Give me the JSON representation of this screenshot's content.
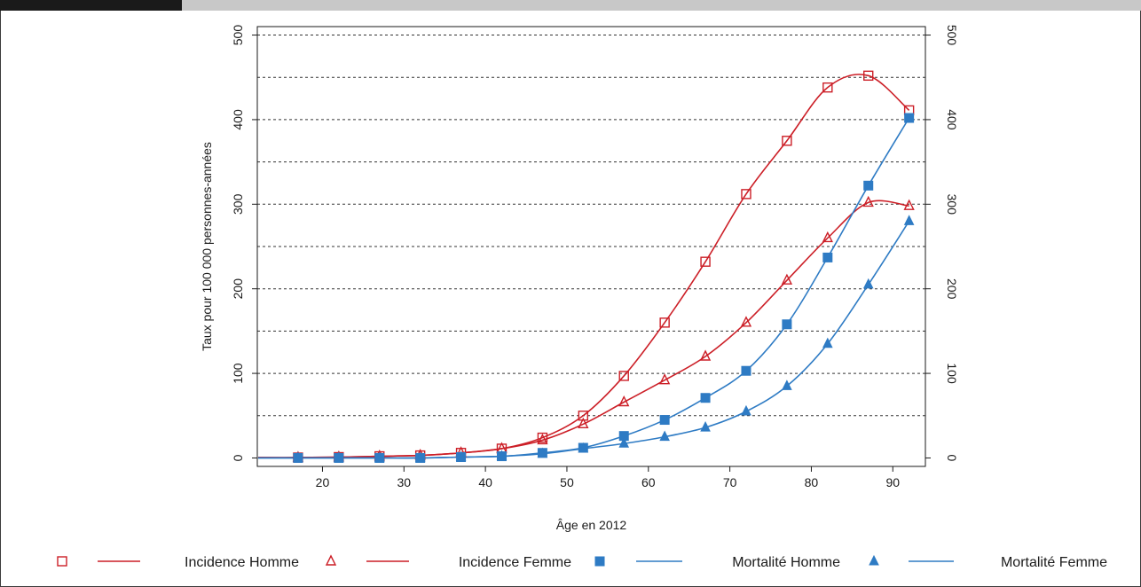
{
  "chart_data": {
    "type": "line",
    "xlabel": "Âge en 2012",
    "ylabel": "Taux pour 100 000 personnes-années",
    "xlim": [
      12,
      94
    ],
    "ylim": [
      -10,
      510
    ],
    "x_ticks": [
      20,
      30,
      40,
      50,
      60,
      70,
      80,
      90
    ],
    "y_ticks": [
      0,
      100,
      200,
      300,
      400,
      500
    ],
    "y_gridlines": [
      50,
      100,
      150,
      200,
      250,
      300,
      350,
      400,
      450,
      500
    ],
    "grid": "horizontal dashed",
    "legend_position": "bottom",
    "x": [
      17,
      22,
      27,
      32,
      37,
      42,
      47,
      52,
      57,
      62,
      67,
      72,
      77,
      82,
      87,
      92
    ],
    "series": [
      {
        "name": "Incidence Homme",
        "color": "#cc1f27",
        "marker": "open-square",
        "values": [
          0.5,
          1,
          2,
          3,
          6,
          11,
          24,
          50,
          97,
          160,
          232,
          312,
          375,
          438,
          452,
          411
        ]
      },
      {
        "name": "Incidence Femme",
        "color": "#cc1f27",
        "marker": "open-triangle",
        "values": [
          0.5,
          1,
          2,
          3,
          6,
          11,
          21,
          40,
          66,
          92,
          120,
          160,
          210,
          260,
          302,
          298
        ]
      },
      {
        "name": "Mortalité Homme",
        "color": "#2e7bc4",
        "marker": "filled-square",
        "values": [
          0,
          0,
          0,
          0,
          1,
          2,
          6,
          12,
          26,
          45,
          71,
          103,
          158,
          237,
          322,
          402
        ]
      },
      {
        "name": "Mortalité Femme",
        "color": "#2e7bc4",
        "marker": "filled-triangle",
        "values": [
          0,
          0,
          0,
          0,
          1,
          2,
          5,
          11,
          17,
          25,
          36,
          55,
          85,
          135,
          205,
          280
        ]
      }
    ]
  }
}
